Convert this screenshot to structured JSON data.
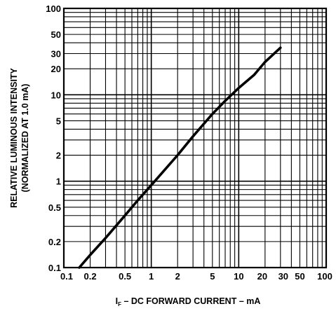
{
  "chart_data": {
    "type": "line",
    "title": "",
    "xlabel": {
      "prefix": "I",
      "subscript": "F",
      "rest": " – DC FORWARD CURRENT – mA"
    },
    "ylabel": [
      "RELATIVE LUMINOUS INTENSITY",
      "(NORMALIZED AT 1.0 mA)"
    ],
    "x_scale": "log",
    "y_scale": "log",
    "xlim": [
      0.1,
      100
    ],
    "ylim": [
      0.1,
      100
    ],
    "grid": true,
    "x_tick_labels": [
      {
        "value": 0.1,
        "label": "0.1"
      },
      {
        "value": 0.2,
        "label": "0.2"
      },
      {
        "value": 0.5,
        "label": "0.5"
      },
      {
        "value": 1,
        "label": "1"
      },
      {
        "value": 2,
        "label": "2"
      },
      {
        "value": 5,
        "label": "5"
      },
      {
        "value": 10,
        "label": "10"
      },
      {
        "value": 20,
        "label": "20"
      },
      {
        "value": 30,
        "label": "30"
      },
      {
        "value": 50,
        "label": "50"
      },
      {
        "value": 100,
        "label": "100"
      }
    ],
    "y_tick_labels": [
      {
        "value": 0.1,
        "label": "0.1"
      },
      {
        "value": 0.2,
        "label": "0.2"
      },
      {
        "value": 0.5,
        "label": "0.5"
      },
      {
        "value": 1,
        "label": "1"
      },
      {
        "value": 2,
        "label": "2"
      },
      {
        "value": 5,
        "label": "5"
      },
      {
        "value": 10,
        "label": "10"
      },
      {
        "value": 20,
        "label": "20"
      },
      {
        "value": 30,
        "label": "30"
      },
      {
        "value": 50,
        "label": "50"
      },
      {
        "value": 100,
        "label": "100"
      }
    ],
    "series": [
      {
        "color": "#000000",
        "points": [
          {
            "x": 0.15,
            "y": 0.1
          },
          {
            "x": 0.2,
            "y": 0.14
          },
          {
            "x": 0.3,
            "y": 0.22
          },
          {
            "x": 0.5,
            "y": 0.4
          },
          {
            "x": 0.7,
            "y": 0.6
          },
          {
            "x": 1,
            "y": 0.9
          },
          {
            "x": 2,
            "y": 2
          },
          {
            "x": 3,
            "y": 3.3
          },
          {
            "x": 5,
            "y": 6
          },
          {
            "x": 7,
            "y": 8.5
          },
          {
            "x": 10,
            "y": 12
          },
          {
            "x": 15,
            "y": 17
          },
          {
            "x": 20,
            "y": 24
          },
          {
            "x": 30,
            "y": 35
          }
        ]
      }
    ]
  }
}
